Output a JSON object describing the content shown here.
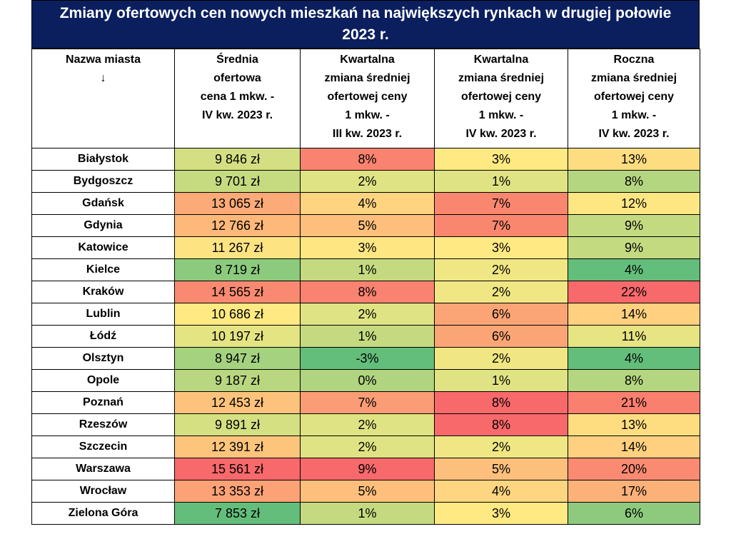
{
  "header": {
    "title": "Zmiany ofertowych cen nowych mieszkań na największych rynkach w drugiej połowie 2023 r."
  },
  "table": {
    "columns": [
      "Nazwa miasta\n↓",
      "Średnia\nofertowa\ncena 1 mkw. -\nIV kw. 2023 r.",
      "Kwartalna\nzmiana średniej\nofertowej ceny\n1 mkw. -\nIII kw. 2023 r.",
      "Kwartalna\nzmiana średniej\nofertowej ceny\n1 mkw. -\nIV kw. 2023 r.",
      "Roczna\nzmiana średniej\nofertowej ceny\n1 mkw. -\nIV kw. 2023 r."
    ],
    "rows": [
      [
        "Białystok",
        "9 846 zł",
        "8%",
        "3%",
        "13%"
      ],
      [
        "Bydgoszcz",
        "9 701 zł",
        "2%",
        "1%",
        "8%"
      ],
      [
        "Gdańsk",
        "13 065 zł",
        "4%",
        "7%",
        "12%"
      ],
      [
        "Gdynia",
        "12 766 zł",
        "5%",
        "7%",
        "9%"
      ],
      [
        "Katowice",
        "11 267 zł",
        "3%",
        "3%",
        "9%"
      ],
      [
        "Kielce",
        "8 719 zł",
        "1%",
        "2%",
        "4%"
      ],
      [
        "Kraków",
        "14 565 zł",
        "8%",
        "2%",
        "22%"
      ],
      [
        "Lublin",
        "10 686 zł",
        "2%",
        "6%",
        "14%"
      ],
      [
        "Łódź",
        "10 197 zł",
        "1%",
        "6%",
        "11%"
      ],
      [
        "Olsztyn",
        "8 947 zł",
        "-3%",
        "2%",
        "4%"
      ],
      [
        "Opole",
        "9 187 zł",
        "0%",
        "1%",
        "8%"
      ],
      [
        "Poznań",
        "12 453 zł",
        "7%",
        "8%",
        "21%"
      ],
      [
        "Rzeszów",
        "9 891 zł",
        "2%",
        "8%",
        "13%"
      ],
      [
        "Szczecin",
        "12 391 zł",
        "2%",
        "2%",
        "14%"
      ],
      [
        "Warszawa",
        "15 561 zł",
        "9%",
        "5%",
        "20%"
      ],
      [
        "Wrocław",
        "13 353 zł",
        "5%",
        "4%",
        "17%"
      ],
      [
        "Zielona Góra",
        "7 853 zł",
        "1%",
        "3%",
        "6%"
      ]
    ],
    "cell_colors": [
      [
        "#d3df82",
        "#f98370",
        "#fee983",
        "#fedd81"
      ],
      [
        "#c6db80",
        "#dfe383",
        "#e0e383",
        "#b5d680"
      ],
      [
        "#fcaa77",
        "#fed480",
        "#f9876f",
        "#fee783"
      ],
      [
        "#fdb87a",
        "#fdbf7b",
        "#f9876f",
        "#c4da81"
      ],
      [
        "#fee382",
        "#fee683",
        "#fee983",
        "#c4da81"
      ],
      [
        "#8ccb7e",
        "#c5da80",
        "#f0e784",
        "#63be7b"
      ],
      [
        "#f98a71",
        "#f98370",
        "#f0e784",
        "#f8696b"
      ],
      [
        "#fee983",
        "#dfe383",
        "#fba576",
        "#fed07f"
      ],
      [
        "#e5e483",
        "#c5da80",
        "#fba576",
        "#e7e483"
      ],
      [
        "#a5d27f",
        "#63be7b",
        "#f0e784",
        "#63be7b"
      ],
      [
        "#b9d780",
        "#b0d47f",
        "#e0e383",
        "#b5d680"
      ],
      [
        "#fdc37c",
        "#fa9c75",
        "#f8696b",
        "#f97f6f"
      ],
      [
        "#d4e082",
        "#dfe383",
        "#f8696b",
        "#fedd81"
      ],
      [
        "#fdc57c",
        "#dfe383",
        "#f0e784",
        "#fed07f"
      ],
      [
        "#f8696b",
        "#f8696b",
        "#fdc07c",
        "#fa8b72"
      ],
      [
        "#fca276",
        "#fdbf7b",
        "#fed580",
        "#fcb179"
      ],
      [
        "#63be7b",
        "#c5da80",
        "#fee983",
        "#8dca7e"
      ]
    ]
  }
}
